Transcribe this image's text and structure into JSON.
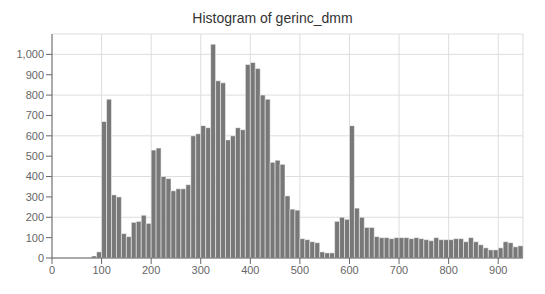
{
  "chart_data": {
    "type": "histogram",
    "title": "Histogram of gerinc_dmm",
    "color": "#787878",
    "grid": true,
    "bins": [
      80,
      90,
      100,
      110,
      120,
      130,
      140,
      150,
      160,
      170,
      180,
      190,
      200,
      210,
      220,
      230,
      240,
      250,
      260,
      270,
      280,
      290,
      300,
      310,
      320,
      330,
      340,
      350,
      360,
      370,
      380,
      390,
      400,
      410,
      420,
      430,
      440,
      450,
      460,
      470,
      480,
      490,
      500,
      510,
      520,
      530,
      540,
      550,
      560,
      570,
      580,
      590,
      600,
      610,
      620,
      630,
      640,
      650,
      660,
      670,
      680,
      690,
      700,
      710,
      720,
      730,
      740,
      750,
      760,
      770,
      780,
      790,
      800,
      810,
      820,
      830,
      840,
      850,
      860,
      870,
      880,
      890,
      900,
      910,
      920,
      930,
      940,
      950
    ],
    "values": [
      10,
      30,
      670,
      780,
      310,
      300,
      120,
      105,
      175,
      180,
      210,
      170,
      530,
      540,
      400,
      390,
      330,
      340,
      340,
      360,
      600,
      610,
      650,
      640,
      1050,
      870,
      860,
      580,
      600,
      640,
      630,
      950,
      960,
      930,
      800,
      780,
      470,
      480,
      460,
      305,
      240,
      235,
      95,
      90,
      80,
      75,
      30,
      25,
      25,
      180,
      200,
      190,
      650,
      245,
      200,
      150,
      150,
      105,
      100,
      100,
      95,
      100,
      100,
      100,
      95,
      100,
      95,
      90,
      85,
      100,
      90,
      90,
      90,
      95,
      95,
      80,
      100,
      80,
      65,
      50,
      40,
      40,
      50,
      80,
      75,
      55,
      60
    ],
    "xlim": [
      0,
      950
    ],
    "ylim": [
      0,
      1100
    ],
    "xticks": [
      0,
      100,
      200,
      300,
      400,
      500,
      600,
      700,
      800,
      900
    ],
    "yticks": [
      0,
      100,
      200,
      300,
      400,
      500,
      600,
      700,
      800,
      900,
      {
        "value": 1000,
        "label": "1,000"
      }
    ]
  }
}
